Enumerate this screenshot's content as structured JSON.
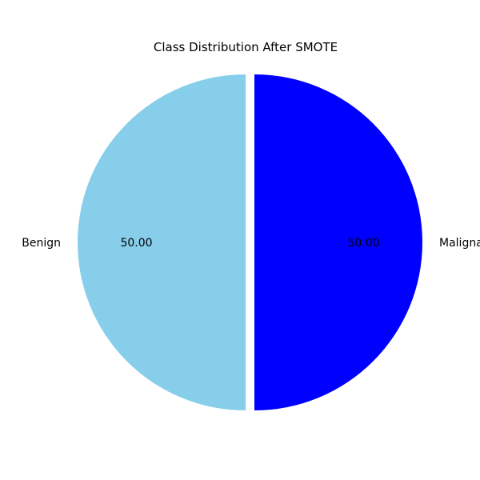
{
  "chart_data": {
    "type": "pie",
    "title": "Class Distribution After SMOTE",
    "categories": [
      "Benign",
      "Malignant"
    ],
    "values": [
      50.0,
      50.0
    ],
    "percent_labels": [
      "50.00",
      "50.00"
    ],
    "colors": [
      "#87ceeb",
      "#0000ff"
    ],
    "exploded": [
      false,
      true
    ],
    "start_angle_deg": 90,
    "direction": "counterclockwise",
    "legend": "none"
  }
}
